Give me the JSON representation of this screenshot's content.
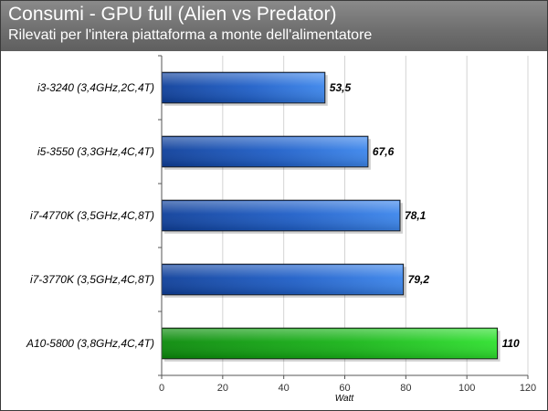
{
  "chart_data": {
    "type": "bar",
    "orientation": "horizontal",
    "title": "Consumi - GPU full (Alien vs Predator)",
    "subtitle": "Rilevati per l'intera piattaforma a monte dell'alimentatore",
    "categories": [
      "i3-3240 (3,4GHz,2C,4T)",
      "i5-3550 (3,3GHz,4C,4T)",
      "i7-4770K (3,5GHz,4C,8T)",
      "i7-3770K (3,5GHz,4C,8T)",
      "A10-5800 (3,8GHz,4C,4T)"
    ],
    "values": [
      53.5,
      67.6,
      78.1,
      79.2,
      110
    ],
    "value_labels": [
      "53,5",
      "67,6",
      "78,1",
      "79,2",
      "110"
    ],
    "bar_colors": [
      "#1f5fc8",
      "#1f5fc8",
      "#1f5fc8",
      "#1f5fc8",
      "#18b418"
    ],
    "xlabel": "Watt",
    "ylabel": "",
    "xlim": [
      0,
      120
    ],
    "xticks": [
      0,
      20,
      40,
      60,
      80,
      100,
      120
    ],
    "grid": true
  }
}
